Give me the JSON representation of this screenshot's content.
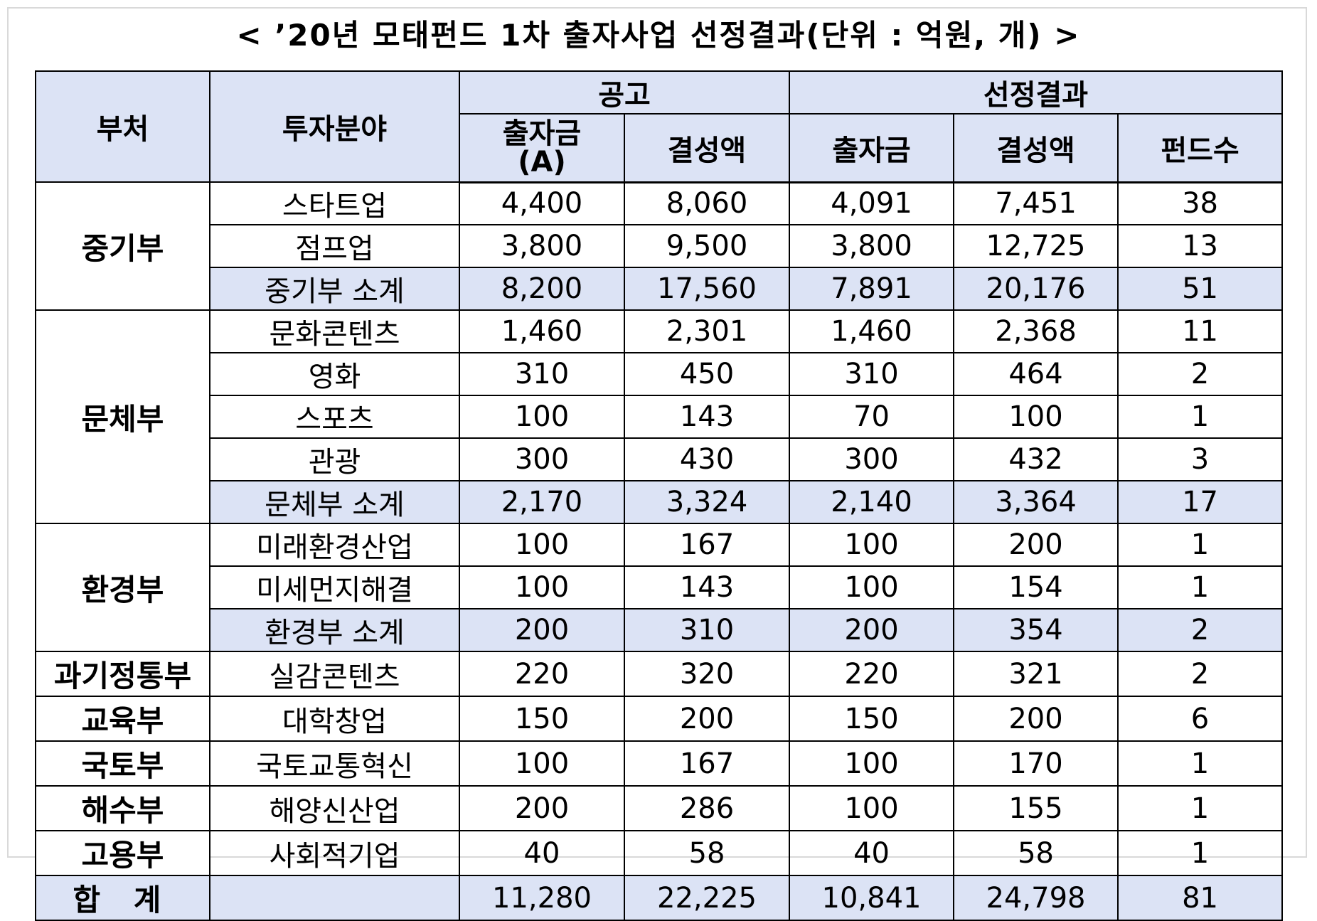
{
  "title": "< ’20년 모태펀드 1차 출자사업 선정결과(단위 : 억원, 개) >",
  "header": {
    "dept": "부처",
    "field": "투자분야",
    "group_announce": "공고",
    "group_result": "선정결과",
    "announce_invest": "출자금",
    "announce_invest_sub": "(A)",
    "announce_fund": "결성액",
    "result_invest": "출자금",
    "result_fund": "결성액",
    "fund_count": "펀드수"
  },
  "groups": [
    {
      "dept": "중기부",
      "rows": [
        {
          "field": "스타트업",
          "a_invest": "4,400",
          "a_fund": "8,060",
          "r_invest": "4,091",
          "r_fund": "7,451",
          "count": "38"
        },
        {
          "field": "점프업",
          "a_invest": "3,800",
          "a_fund": "9,500",
          "r_invest": "3,800",
          "r_fund": "12,725",
          "count": "13"
        },
        {
          "field": "중기부 소계",
          "a_invest": "8,200",
          "a_fund": "17,560",
          "r_invest": "7,891",
          "r_fund": "20,176",
          "count": "51",
          "subtotal": true
        }
      ]
    },
    {
      "dept": "문체부",
      "rows": [
        {
          "field": "문화콘텐츠",
          "a_invest": "1,460",
          "a_fund": "2,301",
          "r_invest": "1,460",
          "r_fund": "2,368",
          "count": "11"
        },
        {
          "field": "영화",
          "a_invest": "310",
          "a_fund": "450",
          "r_invest": "310",
          "r_fund": "464",
          "count": "2"
        },
        {
          "field": "스포츠",
          "a_invest": "100",
          "a_fund": "143",
          "r_invest": "70",
          "r_fund": "100",
          "count": "1"
        },
        {
          "field": "관광",
          "a_invest": "300",
          "a_fund": "430",
          "r_invest": "300",
          "r_fund": "432",
          "count": "3"
        },
        {
          "field": "문체부 소계",
          "a_invest": "2,170",
          "a_fund": "3,324",
          "r_invest": "2,140",
          "r_fund": "3,364",
          "count": "17",
          "subtotal": true
        }
      ]
    },
    {
      "dept": "환경부",
      "rows": [
        {
          "field": "미래환경산업",
          "a_invest": "100",
          "a_fund": "167",
          "r_invest": "100",
          "r_fund": "200",
          "count": "1"
        },
        {
          "field": "미세먼지해결",
          "a_invest": "100",
          "a_fund": "143",
          "r_invest": "100",
          "r_fund": "154",
          "count": "1"
        },
        {
          "field": "환경부 소계",
          "a_invest": "200",
          "a_fund": "310",
          "r_invest": "200",
          "r_fund": "354",
          "count": "2",
          "subtotal": true
        }
      ]
    },
    {
      "dept": "과기정통부",
      "rows": [
        {
          "field": "실감콘텐츠",
          "a_invest": "220",
          "a_fund": "320",
          "r_invest": "220",
          "r_fund": "321",
          "count": "2"
        }
      ]
    },
    {
      "dept": "교육부",
      "rows": [
        {
          "field": "대학창업",
          "a_invest": "150",
          "a_fund": "200",
          "r_invest": "150",
          "r_fund": "200",
          "count": "6"
        }
      ]
    },
    {
      "dept": "국토부",
      "rows": [
        {
          "field": "국토교통혁신",
          "a_invest": "100",
          "a_fund": "167",
          "r_invest": "100",
          "r_fund": "170",
          "count": "1"
        }
      ]
    },
    {
      "dept": "해수부",
      "rows": [
        {
          "field": "해양신산업",
          "a_invest": "200",
          "a_fund": "286",
          "r_invest": "100",
          "r_fund": "155",
          "count": "1"
        }
      ]
    },
    {
      "dept": "고용부",
      "rows": [
        {
          "field": "사회적기업",
          "a_invest": "40",
          "a_fund": "58",
          "r_invest": "40",
          "r_fund": "58",
          "count": "1"
        }
      ]
    }
  ],
  "total": {
    "label": "합 계",
    "field": "",
    "a_invest": "11,280",
    "a_fund": "22,225",
    "r_invest": "10,841",
    "r_fund": "24,798",
    "count": "81"
  }
}
